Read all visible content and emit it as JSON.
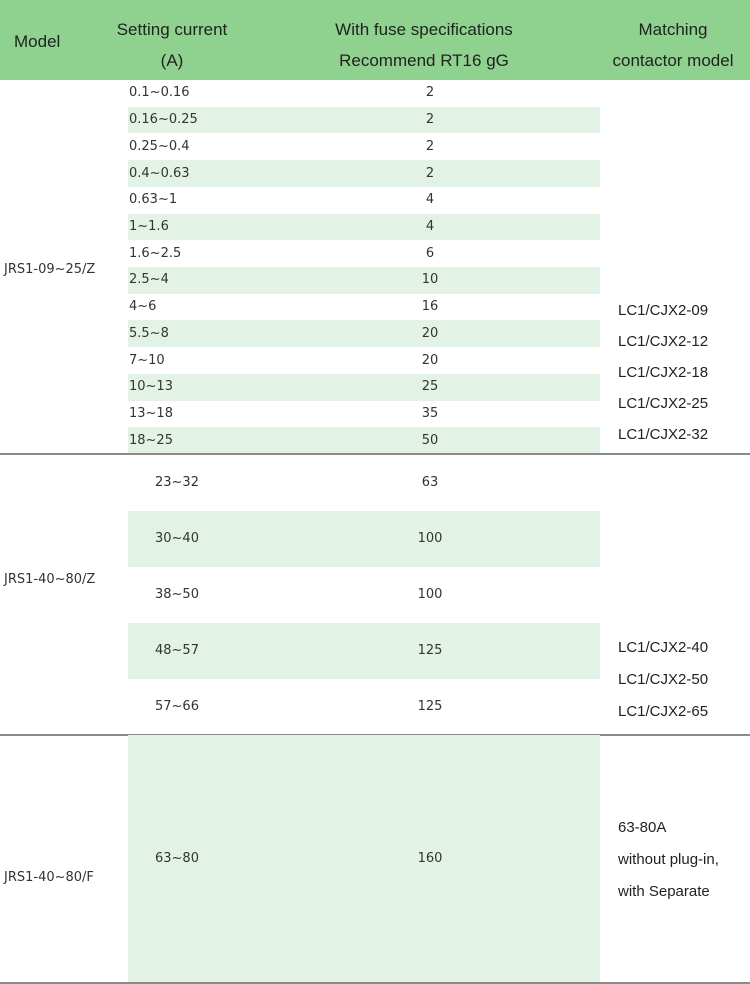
{
  "header": {
    "model": "Model",
    "setting_current": [
      "Setting current",
      "(A)"
    ],
    "fuse": [
      "With fuse specifications",
      "Recommend RT16  gG"
    ],
    "contactor": [
      "Matching",
      "contactor model"
    ]
  },
  "groups": [
    {
      "model": "JRS1-09~25/Z",
      "rows": [
        [
          "0.1~0.16",
          2
        ],
        [
          "0.16~0.25",
          2
        ],
        [
          "0.25~0.4",
          2
        ],
        [
          "0.4~0.63",
          2
        ],
        [
          "0.63~1",
          4
        ],
        [
          "1~1.6",
          4
        ],
        [
          "1.6~2.5",
          6
        ],
        [
          "2.5~4",
          10
        ],
        [
          "4~6",
          16
        ],
        [
          "5.5~8",
          20
        ],
        [
          "7~10",
          20
        ],
        [
          "10~13",
          25
        ],
        [
          "13~18",
          35
        ],
        [
          "18~25",
          50
        ]
      ],
      "contactors": [
        "LC1/CJX2-09",
        "LC1/CJX2-12",
        "LC1/CJX2-18",
        "LC1/CJX2-25",
        "LC1/CJX2-32"
      ]
    },
    {
      "model": "JRS1-40~80/Z",
      "rows": [
        [
          "23~32",
          63
        ],
        [
          "30~40",
          100
        ],
        [
          "38~50",
          100
        ],
        [
          "48~57",
          125
        ],
        [
          "57~66",
          125
        ]
      ],
      "contactors": [
        "LC1/CJX2-40",
        "LC1/CJX2-50",
        "LC1/CJX2-65"
      ]
    },
    {
      "model": "JRS1-40~80/F",
      "rows": [
        [
          "63~80",
          160
        ]
      ],
      "contactors": [
        "63-80A",
        "without plug-in,",
        "with Separate"
      ]
    }
  ]
}
